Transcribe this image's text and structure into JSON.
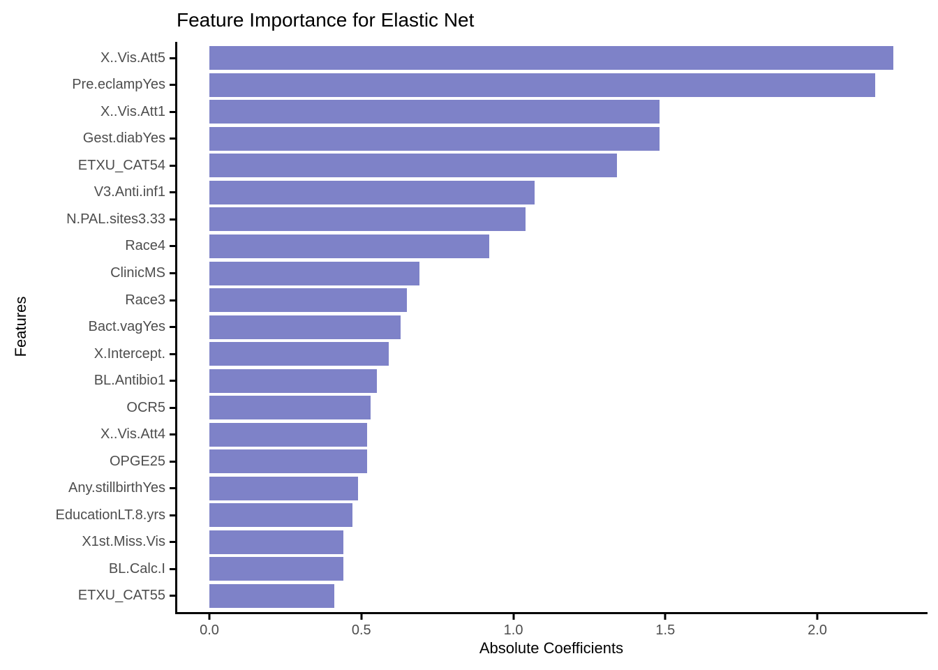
{
  "chart_data": {
    "type": "bar",
    "orientation": "horizontal",
    "title": "Feature Importance for Elastic Net",
    "xlabel": "Absolute Coefficients",
    "ylabel": "Features",
    "categories": [
      "X..Vis.Att5",
      "Pre.eclampYes",
      "X..Vis.Att1",
      "Gest.diabYes",
      "ETXU_CAT54",
      "V3.Anti.inf1",
      "N.PAL.sites3.33",
      "Race4",
      "ClinicMS",
      "Race3",
      "Bact.vagYes",
      "X.Intercept.",
      "BL.Antibio1",
      "OCR5",
      "X..Vis.Att4",
      "OPGE25",
      "Any.stillbirthYes",
      "EducationLT.8.yrs",
      "X1st.Miss.Vis",
      "BL.Calc.I",
      "ETXU_CAT55"
    ],
    "values": [
      2.25,
      2.19,
      1.48,
      1.48,
      1.34,
      1.07,
      1.04,
      0.92,
      0.69,
      0.65,
      0.63,
      0.59,
      0.55,
      0.53,
      0.52,
      0.52,
      0.49,
      0.47,
      0.44,
      0.44,
      0.41
    ],
    "xlim": [
      -0.1125,
      2.3625
    ],
    "xticks": [
      0.0,
      0.5,
      1.0,
      1.5,
      2.0
    ],
    "xtick_labels": [
      "0.0",
      "0.5",
      "1.0",
      "1.5",
      "2.0"
    ],
    "bar_color": "#7E82C8",
    "axis_color": "#000000",
    "tick_label_color": "#4D4D4D",
    "grid": false,
    "legend": null
  }
}
